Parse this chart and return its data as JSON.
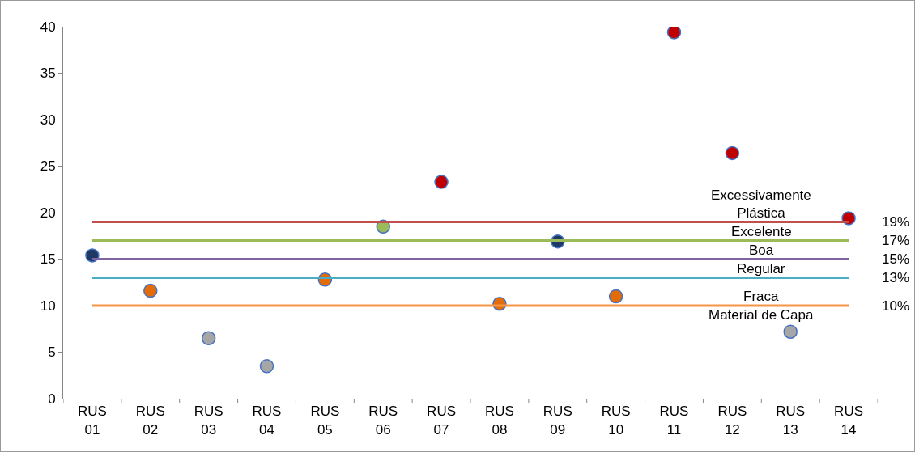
{
  "chart_data": {
    "type": "scatter",
    "categories": [
      "RUS 01",
      "RUS 02",
      "RUS 03",
      "RUS 04",
      "RUS 05",
      "RUS 06",
      "RUS 07",
      "RUS 08",
      "RUS 09",
      "RUS 10",
      "RUS 11",
      "RUS 12",
      "RUS 13",
      "RUS 14"
    ],
    "values": [
      15.4,
      11.6,
      6.5,
      3.5,
      12.8,
      18.5,
      23.3,
      10.2,
      16.9,
      11.0,
      39.4,
      26.4,
      7.2,
      19.4
    ],
    "colors": [
      "#1f3864",
      "#e36c09",
      "#a6a6a6",
      "#a6a6a6",
      "#e36c09",
      "#9bbb59",
      "#c00000",
      "#e36c09",
      "#1f3864",
      "#e36c09",
      "#c00000",
      "#c00000",
      "#a6a6a6",
      "#c00000"
    ],
    "marker": "circle",
    "ylim": [
      0,
      40
    ],
    "yticks": [
      0,
      5,
      10,
      15,
      20,
      25,
      30,
      35,
      40
    ],
    "grid": false,
    "ref_lines": [
      {
        "axis": "y",
        "value": 19,
        "label": "19%",
        "color": "#c0504d",
        "line_style": "solid"
      },
      {
        "axis": "y",
        "value": 17,
        "label": "17%",
        "color": "#9bbb59",
        "line_style": "solid"
      },
      {
        "axis": "y",
        "value": 15,
        "label": "15%",
        "color": "#8064a2",
        "line_style": "solid"
      },
      {
        "axis": "y",
        "value": 13,
        "label": "13%",
        "color": "#4bacc6",
        "line_style": "solid"
      },
      {
        "axis": "y",
        "value": 10,
        "label": "10%",
        "color": "#f79646",
        "line_style": "solid"
      }
    ],
    "annotations": [
      "Excessivamente\nPlástica",
      "Excelente",
      "Boa",
      "Regular",
      "Fraca",
      "Material de Capa"
    ]
  }
}
